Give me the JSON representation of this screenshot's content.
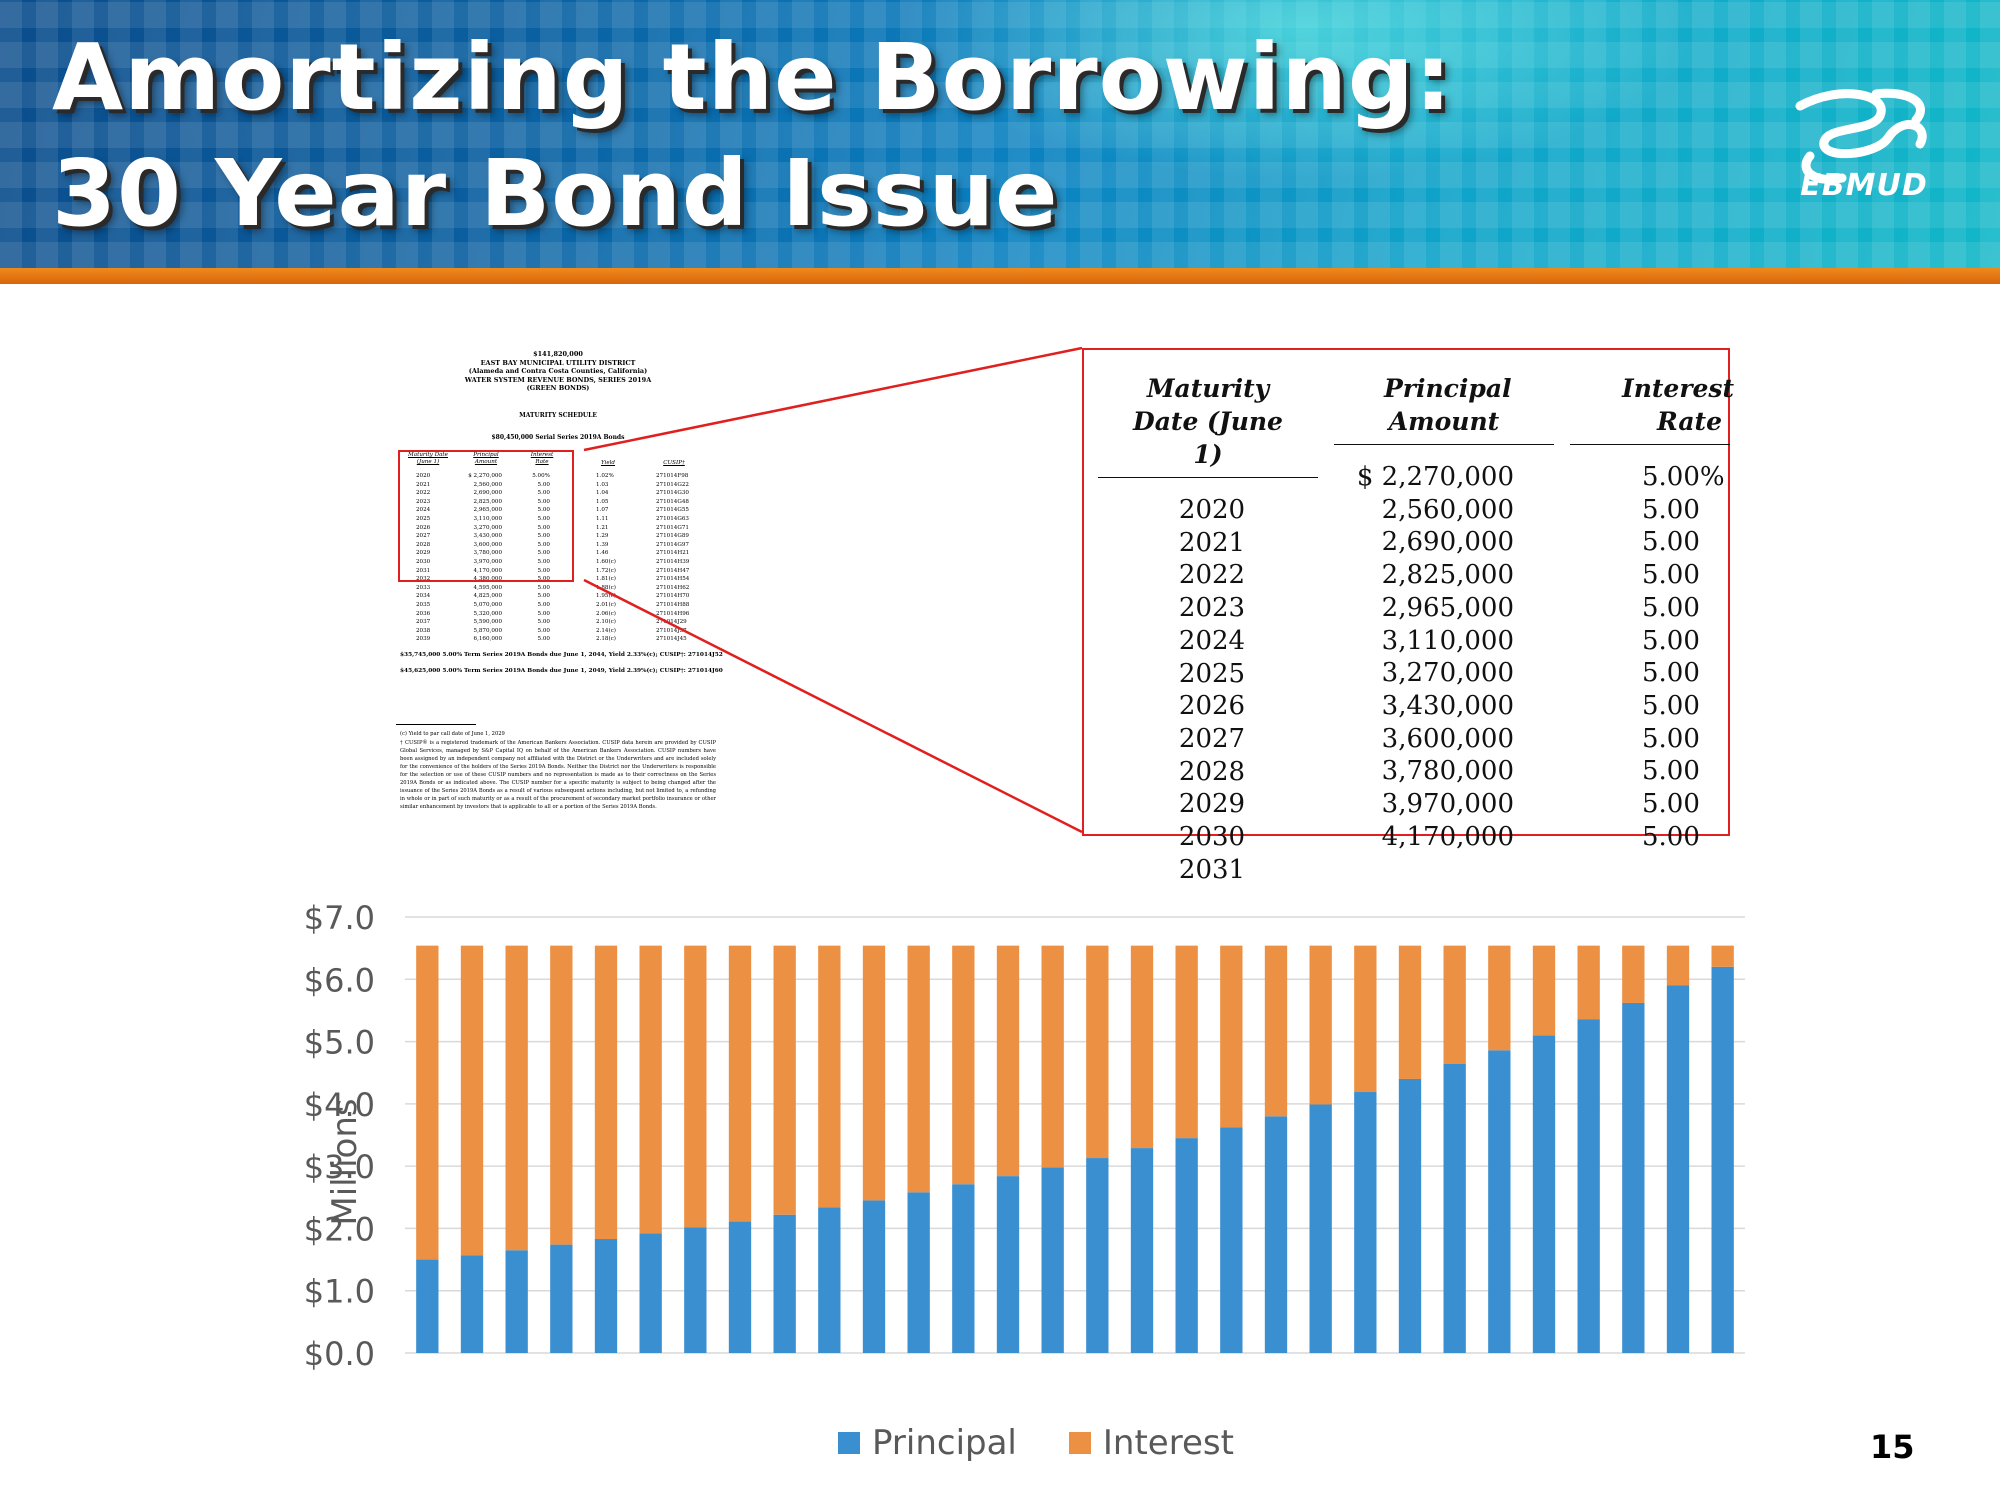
{
  "slide": {
    "title_line1": "Amortizing the Borrowing:",
    "title_line2": "30 Year Bond Issue",
    "logo_text": "EBMUD",
    "page_number": "15"
  },
  "document": {
    "header_lines": [
      "$141,820,000",
      "EAST BAY MUNICIPAL UTILITY DISTRICT",
      "(Alameda and Contra Costa Counties, California)",
      "WATER SYSTEM REVENUE BONDS, SERIES 2019A",
      "(GREEN BONDS)"
    ],
    "schedule_title": "MATURITY SCHEDULE",
    "serial_title": "$80,450,000 Serial Series 2019A Bonds",
    "columns": [
      "Maturity Date\n(June 1)",
      "Principal\nAmount",
      "Interest\nRate",
      "Yield",
      "CUSIP†"
    ],
    "years": "2020\n2021\n2022\n2023\n2024\n2025\n2026\n2027\n2028\n2029\n2030\n2031\n2032\n2033\n2034\n2035\n2036\n2037\n2038\n2039",
    "amounts": "$ 2,270,000\n2,560,000\n2,690,000\n2,825,000\n2,965,000\n3,110,000\n3,270,000\n3,430,000\n3,600,000\n3,780,000\n3,970,000\n4,170,000\n4,380,000\n4,595,000\n4,825,000\n5,070,000\n5,320,000\n5,590,000\n5,870,000\n6,160,000",
    "rates": "5.00%\n5.00\n5.00\n5.00\n5.00\n5.00\n5.00\n5.00\n5.00\n5.00\n5.00\n5.00\n5.00\n5.00\n5.00\n5.00\n5.00\n5.00\n5.00\n5.00",
    "yields": "1.02%\n1.03\n1.04\n1.05\n1.07\n1.11\n1.21\n1.29\n1.39\n1.46\n1.60(c)\n1.72(c)\n1.81(c)\n1.88(c)\n1.95(c)\n2.01(c)\n2.06(c)\n2.10(c)\n2.14(c)\n2.18(c)",
    "cusips": "271014F98\n271014G22\n271014G30\n271014G48\n271014G55\n271014G63\n271014G71\n271014G89\n271014G97\n271014H21\n271014H39\n271014H47\n271014H54\n271014H62\n271014H70\n271014H88\n271014H96\n271014J29\n271014J37\n271014J45",
    "term_line1": "$35,745,000 5.00% Term Series 2019A Bonds due June 1, 2044, Yield 2.33%(c); CUSIP†: 271014J52",
    "term_line2": "$45,625,000 5.00% Term Series 2019A Bonds due June 1, 2049, Yield 2.39%(c); CUSIP†: 271014J60",
    "footnote_c": "(c)   Yield to par call date of June 1, 2029",
    "footnote_cusip": "†   CUSIP® is a registered trademark of the American Bankers Association. CUSIP data herein are provided by CUSIP Global Services, managed by S&P Capital IQ on behalf of the American Bankers Association. CUSIP numbers have been assigned by an independent company not affiliated with the District or the Underwriters and are included solely for the convenience of the holders of the Series 2019A Bonds. Neither the District nor the Underwriters is responsible for the selection or use of these CUSIP numbers and no representation is made as to their correctness on the Series 2019A Bonds or as indicated above. The CUSIP number for a specific maturity is subject to being changed after the issuance of the Series 2019A Bonds as a result of various subsequent actions including, but not limited to, a refunding in whole or in part of such maturity or as a result of the procurement of secondary market portfolio insurance or other similar enhancement by investors that is applicable to all or a portion of the Series 2019A Bonds."
  },
  "zoom_table": {
    "col1_header": "Maturity Date (June 1)",
    "col2_header": "Principal Amount",
    "col3_header": "Interest Rate",
    "years": "2020\n2021\n2022\n2023\n2024\n2025\n2026\n2027\n2028\n2029\n2030\n2031",
    "amounts_first": "$ 2,270,000",
    "amounts_rest": "2,560,000\n2,690,000\n2,825,000\n2,965,000\n3,110,000\n3,270,000\n3,430,000\n3,600,000\n3,780,000\n3,970,000\n4,170,000",
    "rates_first": "5.00%",
    "rates_rest": "5.00\n5.00\n5.00\n5.00\n5.00\n5.00\n5.00\n5.00\n5.00\n5.00\n5.00"
  },
  "colors": {
    "principal": "#3a8fd0",
    "interest": "#ec9043",
    "callout_red": "#e0201e",
    "gridline": "#d9d9d9",
    "axis_text": "#595959"
  },
  "chart_data": {
    "type": "bar",
    "stacked": true,
    "title": "",
    "xlabel": "",
    "ylabel": "Millions",
    "ylim": [
      0,
      7
    ],
    "y_ticks": [
      "$0.0",
      "$1.0",
      "$2.0",
      "$3.0",
      "$4.0",
      "$5.0",
      "$6.0",
      "$7.0"
    ],
    "grid": true,
    "legend_position": "bottom",
    "series": [
      {
        "name": "Principal",
        "values": [
          1.5,
          1.57,
          1.65,
          1.74,
          1.83,
          1.92,
          2.02,
          2.11,
          2.22,
          2.34,
          2.45,
          2.58,
          2.71,
          2.84,
          2.98,
          3.13,
          3.29,
          3.45,
          3.62,
          3.8,
          3.99,
          4.19,
          4.4,
          4.64,
          4.86,
          5.1,
          5.36,
          5.62,
          5.9,
          6.2
        ]
      },
      {
        "name": "Interest",
        "values": [
          5.04,
          4.97,
          4.89,
          4.8,
          4.71,
          4.62,
          4.52,
          4.43,
          4.32,
          4.2,
          4.09,
          3.96,
          3.83,
          3.7,
          3.56,
          3.41,
          3.25,
          3.09,
          2.92,
          2.74,
          2.55,
          2.35,
          2.14,
          1.9,
          1.68,
          1.44,
          1.18,
          0.92,
          0.64,
          0.34
        ]
      }
    ]
  }
}
